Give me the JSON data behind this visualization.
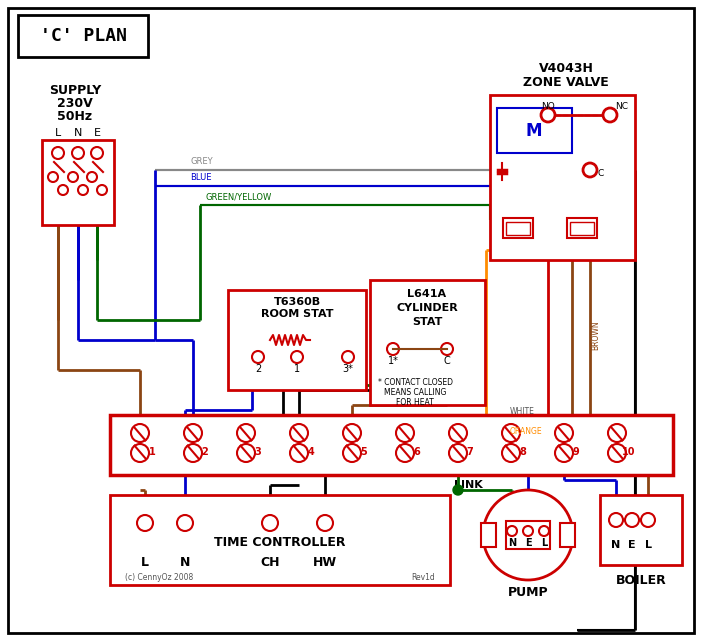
{
  "title": "'C' PLAN",
  "bg_color": "#ffffff",
  "red": "#cc0000",
  "blue": "#0000cc",
  "green": "#006600",
  "grey": "#888888",
  "brown": "#8B4513",
  "orange": "#FF8C00",
  "black": "#000000",
  "white_wire": "#000000",
  "wire_labels": {
    "grey": "GREY",
    "blue": "BLUE",
    "green_yellow": "GREEN/YELLOW",
    "brown": "BROWN",
    "white": "WHITE",
    "orange": "ORANGE"
  },
  "supply_text": [
    "SUPPLY",
    "230V",
    "50Hz"
  ],
  "zone_valve_title": [
    "V4043H",
    "ZONE VALVE"
  ],
  "room_stat_title": [
    "T6360B",
    "ROOM STAT"
  ],
  "cylinder_stat_title": [
    "L641A",
    "CYLINDER",
    "STAT"
  ],
  "cylinder_note": [
    "* CONTACT CLOSED",
    "MEANS CALLING",
    "FOR HEAT"
  ],
  "time_controller_title": "TIME CONTROLLER",
  "time_controller_labels": [
    "L",
    "N",
    "CH",
    "HW"
  ],
  "pump_title": "PUMP",
  "pump_labels": [
    "N",
    "E",
    "L"
  ],
  "boiler_title": "BOILER",
  "boiler_labels": [
    "N",
    "E",
    "L"
  ],
  "link_label": "LINK",
  "copyright": "(c) CennyOz 2008",
  "rev": "Rev1d"
}
